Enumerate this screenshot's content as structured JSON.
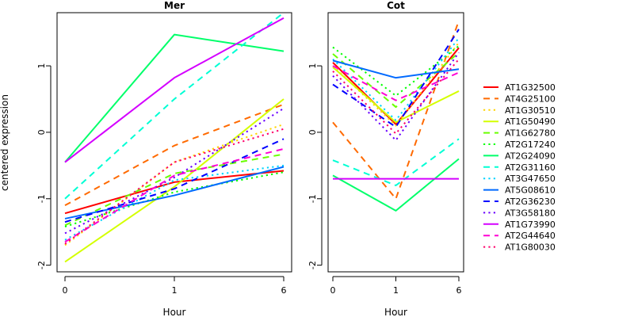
{
  "chart_data": {
    "type": "line",
    "y_axis_title": "centered expression",
    "x_axis_title": "Hour",
    "x_categories": [
      "0",
      "1",
      "6"
    ],
    "y_ticks": [
      -2,
      -1,
      0,
      1
    ],
    "ylim": [
      -2.1,
      1.8
    ],
    "legend_position": "right",
    "series": [
      {
        "name": "AT1G32500",
        "color": "#ff0000",
        "dash": "solid"
      },
      {
        "name": "AT4G25100",
        "color": "#ff6a00",
        "dash": "dashed"
      },
      {
        "name": "AT1G30510",
        "color": "#ffd400",
        "dash": "dotted"
      },
      {
        "name": "AT1G50490",
        "color": "#d4ff00",
        "dash": "solid"
      },
      {
        "name": "AT1G62780",
        "color": "#6aff00",
        "dash": "dashed"
      },
      {
        "name": "AT2G17240",
        "color": "#00ff00",
        "dash": "dotted"
      },
      {
        "name": "AT2G24090",
        "color": "#00ff6a",
        "dash": "solid"
      },
      {
        "name": "AT2G31160",
        "color": "#00ffd4",
        "dash": "dashed"
      },
      {
        "name": "AT3G47650",
        "color": "#00d4ff",
        "dash": "dotted"
      },
      {
        "name": "AT5G08610",
        "color": "#006aff",
        "dash": "solid"
      },
      {
        "name": "AT2G36230",
        "color": "#0000ff",
        "dash": "dashed"
      },
      {
        "name": "AT3G58180",
        "color": "#6a00ff",
        "dash": "dotted"
      },
      {
        "name": "AT1G73990",
        "color": "#d400ff",
        "dash": "solid"
      },
      {
        "name": "AT2G44640",
        "color": "#ff00d4",
        "dash": "dashed"
      },
      {
        "name": "AT1G80030",
        "color": "#ff006a",
        "dash": "dotted"
      }
    ],
    "panels": [
      {
        "title": "Mer",
        "values": [
          [
            -1.22,
            -0.75,
            -0.58
          ],
          [
            -1.1,
            -0.2,
            0.42
          ],
          [
            -1.7,
            -0.45,
            0.12
          ],
          [
            -1.95,
            -0.82,
            0.5
          ],
          [
            -1.4,
            -0.62,
            -0.33
          ],
          [
            -1.42,
            -0.9,
            -0.6
          ],
          [
            -0.45,
            1.47,
            1.22
          ],
          [
            -1.0,
            0.5,
            1.8
          ],
          [
            -1.62,
            -0.72,
            -0.5
          ],
          [
            -1.3,
            -0.95,
            -0.52
          ],
          [
            -1.35,
            -0.85,
            -0.1
          ],
          [
            -1.52,
            -0.68,
            0.36
          ],
          [
            -0.45,
            0.82,
            1.72
          ],
          [
            -1.65,
            -0.65,
            -0.25
          ],
          [
            -1.68,
            -0.45,
            0.05
          ]
        ]
      },
      {
        "title": "Cot",
        "values": [
          [
            1.05,
            0.12,
            1.27
          ],
          [
            0.15,
            -1.0,
            1.68
          ],
          [
            1.0,
            0.1,
            1.35
          ],
          [
            0.98,
            0.15,
            0.62
          ],
          [
            1.18,
            0.38,
            1.2
          ],
          [
            1.28,
            0.55,
            1.3
          ],
          [
            -0.65,
            -1.18,
            -0.4
          ],
          [
            -0.42,
            -0.8,
            -0.1
          ],
          [
            1.1,
            0.18,
            1.42
          ],
          [
            1.08,
            0.82,
            0.95
          ],
          [
            0.72,
            0.08,
            1.55
          ],
          [
            0.85,
            -0.12,
            1.2
          ],
          [
            -0.7,
            -0.7,
            -0.7
          ],
          [
            1.0,
            0.48,
            0.9
          ],
          [
            0.92,
            -0.02,
            1.1
          ]
        ]
      }
    ]
  }
}
